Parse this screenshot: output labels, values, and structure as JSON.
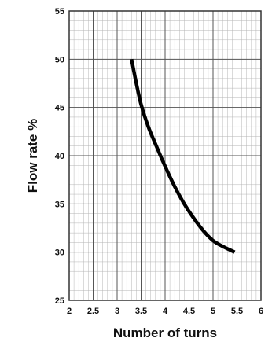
{
  "chart_data": {
    "type": "line",
    "xlabel": "Number of turns",
    "ylabel": "Flow rate %",
    "xlim": [
      2,
      6
    ],
    "ylim": [
      25,
      55
    ],
    "x_ticks": [
      "2",
      "2.5",
      "3",
      "3.5",
      "4",
      "4.5",
      "5",
      "5.5",
      "6"
    ],
    "y_ticks": [
      "25",
      "30",
      "35",
      "40",
      "45",
      "50",
      "55"
    ],
    "grid": true,
    "series": [
      {
        "x": [
          3.3,
          3.4,
          3.5,
          3.65,
          3.8,
          4.0,
          4.2,
          4.4,
          4.6,
          4.8,
          5.0,
          5.2,
          5.45
        ],
        "y": [
          50,
          47.5,
          45.3,
          43.0,
          41.2,
          38.9,
          36.8,
          35.0,
          33.5,
          32.2,
          31.2,
          30.6,
          30.0
        ],
        "color": "#000000"
      }
    ]
  }
}
